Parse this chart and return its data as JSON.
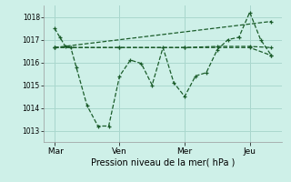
{
  "bg_color": "#cef0e8",
  "grid_color": "#aad8ce",
  "line_color": "#1a5c2a",
  "xlabel": "Pression niveau de la mer( hPa )",
  "ylim": [
    1012.5,
    1018.5
  ],
  "yticks": [
    1013,
    1014,
    1015,
    1016,
    1017,
    1018
  ],
  "xtick_labels": [
    " Mar",
    "Ven",
    "Mer",
    "Jeu"
  ],
  "xtick_positions": [
    0,
    36,
    72,
    108
  ],
  "xlim": [
    -6,
    126
  ],
  "figsize": [
    3.2,
    2.0
  ],
  "dpi": 100,
  "series": [
    {
      "x": [
        0,
        3,
        6,
        9,
        12,
        18,
        24,
        30,
        36,
        42,
        48,
        54,
        60,
        66,
        72,
        78,
        84,
        90,
        96,
        102,
        108,
        114,
        120
      ],
      "y": [
        1017.5,
        1017.1,
        1016.7,
        1016.65,
        1015.8,
        1014.1,
        1013.2,
        1013.2,
        1015.4,
        1016.1,
        1015.95,
        1015.0,
        1016.65,
        1015.1,
        1014.5,
        1015.4,
        1015.55,
        1016.55,
        1017.0,
        1017.1,
        1018.2,
        1017.0,
        1016.3
      ]
    },
    {
      "x": [
        0,
        36,
        72,
        108,
        120
      ],
      "y": [
        1016.65,
        1016.65,
        1016.65,
        1016.65,
        1016.3
      ]
    },
    {
      "x": [
        0,
        120
      ],
      "y": [
        1016.65,
        1017.8
      ]
    },
    {
      "x": [
        0,
        36,
        72,
        90,
        108,
        120
      ],
      "y": [
        1016.65,
        1016.65,
        1016.65,
        1016.7,
        1016.7,
        1016.65
      ]
    }
  ]
}
